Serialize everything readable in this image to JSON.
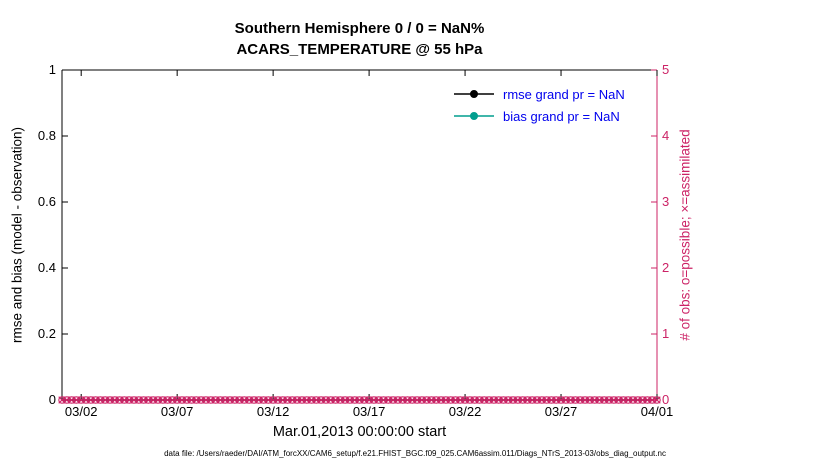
{
  "chart_data": {
    "type": "line",
    "title": "Southern Hemisphere 0 / 0 = NaN%",
    "subtitle": "ACARS_TEMPERATURE @ 55 hPa",
    "xlabel": "Mar.01,2013 00:00:00 start",
    "ylabel_left": "rmse and bias (model - observation)",
    "ylabel_right": "# of obs: o=possible; ×=assimilated",
    "x_ticks": [
      "03/02",
      "03/07",
      "03/12",
      "03/17",
      "03/22",
      "03/27",
      "04/01"
    ],
    "x_tick_days": [
      1,
      6,
      11,
      16,
      21,
      26,
      31
    ],
    "x_range_days": [
      0,
      31
    ],
    "y_left_ticks": [
      0,
      0.2,
      0.4,
      0.6,
      0.8,
      1
    ],
    "y_left_tick_labels": [
      "0",
      "0.2",
      "0.4",
      "0.6",
      "0.8",
      "1"
    ],
    "y_left_range": [
      0,
      1
    ],
    "y_right_ticks": [
      0,
      1,
      2,
      3,
      4,
      5
    ],
    "y_right_tick_labels": [
      "0",
      "1",
      "2",
      "3",
      "4",
      "5"
    ],
    "y_right_range": [
      0,
      5
    ],
    "grid": false,
    "legend_position": "top-right-inside",
    "series": [
      {
        "name": "rmse",
        "legend": "rmse grand pr = NaN",
        "color": "#000000",
        "marker": "filled-circle",
        "values": []
      },
      {
        "name": "bias",
        "legend": "bias grand pr = NaN",
        "color": "#009e8e",
        "marker": "filled-circle",
        "values": []
      }
    ],
    "obs_markers": {
      "possible_count": 0,
      "assimilated_count": 0,
      "value_on_right_axis": 0,
      "points_per_day": 4,
      "marker_styles": [
        "circle",
        "x"
      ]
    },
    "colors": {
      "axis_left": "#000000",
      "axis_right": "#cc2366",
      "legend_text": "#0000ee",
      "background": "#ffffff"
    },
    "footer": "data file: /Users/raeder/DAI/ATM_forcXX/CAM6_setup/f.e21.FHIST_BGC.f09_025.CAM6assim.011/Diags_NTrS_2013-03/obs_diag_output.nc"
  }
}
